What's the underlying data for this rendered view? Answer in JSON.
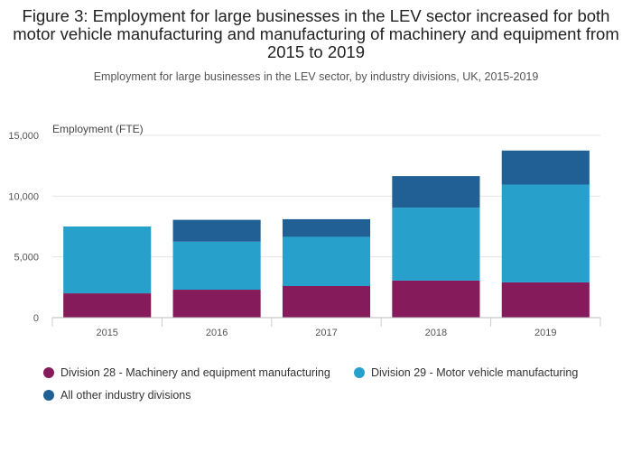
{
  "title": "Figure 3: Employment for large businesses in the LEV sector increased for both motor vehicle manufacturing and manufacturing of machinery and equipment from 2015 to 2019",
  "subtitle": "Employment for large businesses in the LEV sector, by industry divisions, UK, 2015-2019",
  "chart_data": {
    "type": "bar",
    "stacked": true,
    "categories": [
      "2015",
      "2016",
      "2017",
      "2018",
      "2019"
    ],
    "ylabel": "Employment (FTE)",
    "ylim": [
      0,
      15000
    ],
    "yticks": [
      0,
      5000,
      10000,
      15000
    ],
    "ytick_labels": [
      "0",
      "5,000",
      "10,000",
      "15,000"
    ],
    "grid": true,
    "legend_position": "bottom",
    "series": [
      {
        "name": "Division 28 - Machinery and equipment manufacturing",
        "color": "#861b5b",
        "values": [
          2000,
          2300,
          2600,
          3050,
          2900
        ]
      },
      {
        "name": "Division 29 - Motor vehicle manufacturing",
        "color": "#27a0cc",
        "values": [
          5500,
          3950,
          4050,
          6000,
          8050
        ]
      },
      {
        "name": "All other industry divisions",
        "color": "#206095",
        "values": [
          0,
          1800,
          1450,
          2600,
          2800
        ]
      }
    ]
  }
}
